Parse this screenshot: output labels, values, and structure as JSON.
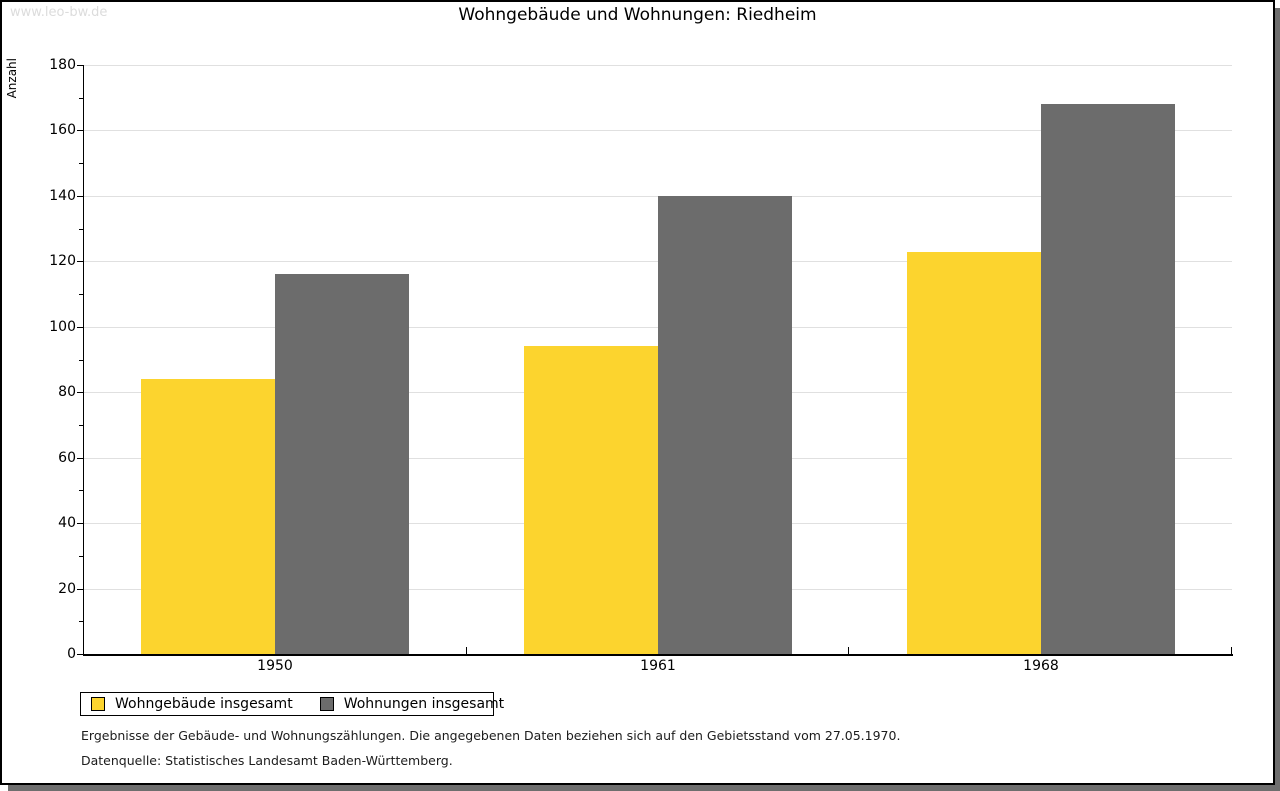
{
  "page": {
    "watermark": "www.leo-bw.de",
    "title": "Wohngebäude und Wohnungen: Riedheim",
    "footnotes": [
      "Ergebnisse der Gebäude- und Wohnungszählungen. Die angegebenen Daten beziehen sich auf den Gebietsstand vom 27.05.1970.",
      "Datenquelle: Statistisches Landesamt Baden-Württemberg."
    ]
  },
  "chart_data": {
    "type": "bar",
    "title": "Wohngebäude und Wohnungen: Riedheim",
    "categories": [
      "1950",
      "1961",
      "1968"
    ],
    "series": [
      {
        "name": "Wohngebäude insgesamt",
        "color": "#fcd42e",
        "values": [
          84,
          94,
          123
        ]
      },
      {
        "name": "Wohnungen insgesamt",
        "color": "#6c6c6c",
        "values": [
          116,
          140,
          168
        ]
      }
    ],
    "xlabel": "",
    "ylabel": "Anzahl",
    "ylim": [
      0,
      180
    ],
    "ytick_major_step": 20,
    "ytick_minor_step": 10,
    "grid": true,
    "legend_position": "bottom-left",
    "gridline_color": "#e0e0e0",
    "axis_color": "#000000"
  }
}
